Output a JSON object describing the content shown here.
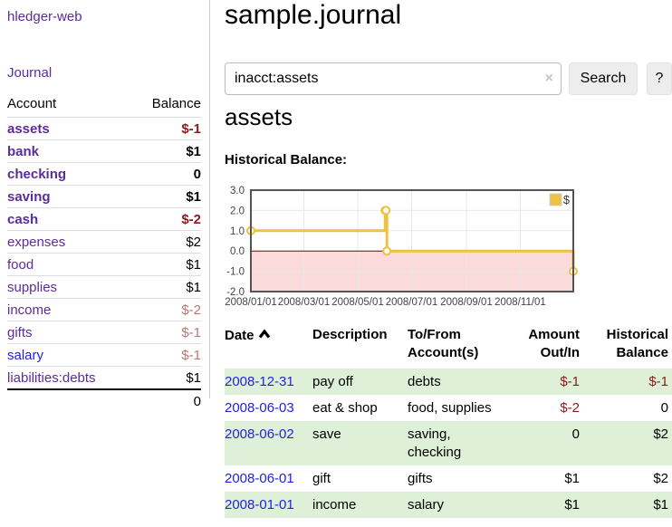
{
  "app": {
    "brand": "hledger-web",
    "nav_journal": "Journal"
  },
  "sidebar": {
    "header": {
      "account": "Account",
      "balance": "Balance"
    },
    "accounts": [
      {
        "name": "assets",
        "balance": "$-1"
      },
      {
        "name": "bank",
        "balance": "$1"
      },
      {
        "name": "checking",
        "balance": "0"
      },
      {
        "name": "saving",
        "balance": "$1"
      },
      {
        "name": "cash",
        "balance": "$-2"
      },
      {
        "name": "expenses",
        "balance": "$2"
      },
      {
        "name": "food",
        "balance": "$1"
      },
      {
        "name": "supplies",
        "balance": "$1"
      },
      {
        "name": "income",
        "balance": "$-2"
      },
      {
        "name": "gifts",
        "balance": "$-1"
      },
      {
        "name": "salary",
        "balance": "$-1"
      },
      {
        "name": "liabilities:debts",
        "balance": "$1"
      }
    ],
    "total": "0"
  },
  "main": {
    "title": "sample.journal",
    "search": {
      "value": "inacct:assets",
      "clear_icon": "×",
      "search_button": "Search",
      "help_button": "?"
    },
    "account_heading": "assets",
    "chart_heading": "Historical Balance:"
  },
  "chart_data": {
    "type": "line",
    "step": true,
    "title": "Historical Balance",
    "x_min": "2008-01-01",
    "x_max": "2008-12-31",
    "ylim": [
      -2,
      3
    ],
    "y_ticks": [
      3.0,
      2.0,
      1.0,
      0.0,
      -1.0,
      -2.0
    ],
    "y_tick_labels": [
      "3.0",
      "2.0",
      "1.0",
      "0.0",
      "-1.0",
      "-2.0"
    ],
    "x_ticks": [
      {
        "date": "2008-01-01",
        "label": "2008/01/01"
      },
      {
        "date": "2008-03-01",
        "label": "2008/03/01"
      },
      {
        "date": "2008-05-01",
        "label": "2008/05/01"
      },
      {
        "date": "2008-07-01",
        "label": "2008/07/01"
      },
      {
        "date": "2008-09-01",
        "label": "2008/09/01"
      },
      {
        "date": "2008-11-01",
        "label": "2008/11/01"
      }
    ],
    "series": [
      {
        "name": "$",
        "color": "#EDC240",
        "points": [
          {
            "date": "2008-01-01",
            "value": 1
          },
          {
            "date": "2008-06-01",
            "value": 2
          },
          {
            "date": "2008-06-02",
            "value": 2
          },
          {
            "date": "2008-06-03",
            "value": 0
          },
          {
            "date": "2008-12-31",
            "value": -1
          }
        ]
      }
    ],
    "legend": {
      "label": "$",
      "position": "top-right"
    },
    "grid": true,
    "colors": {
      "negative_fill": "#fadada",
      "zero_line": "#8b0000",
      "border": "#545454",
      "grid": "#e8e8e8"
    }
  },
  "register": {
    "columns": [
      "Date",
      "Description",
      "To/From Account(s)",
      "Amount Out/In",
      "Historical Balance"
    ],
    "rows": [
      {
        "date": "2008-12-31",
        "description": "pay off",
        "accounts": "debts",
        "amount": "$-1",
        "balance": "$-1"
      },
      {
        "date": "2008-06-03",
        "description": "eat & shop",
        "accounts": "food, supplies",
        "amount": "$-2",
        "balance": "0"
      },
      {
        "date": "2008-06-02",
        "description": "save",
        "accounts": "saving, checking",
        "amount": "0",
        "balance": "$2"
      },
      {
        "date": "2008-06-01",
        "description": "gift",
        "accounts": "gifts",
        "amount": "$1",
        "balance": "$2"
      },
      {
        "date": "2008-01-01",
        "description": "income",
        "accounts": "salary",
        "amount": "$1",
        "balance": "$1"
      }
    ]
  },
  "colors": {
    "link_purple": "#5b2c9d",
    "link_blue": "#2222e0",
    "negative_strong": "#8b1b1b",
    "negative_soft": "#bb7777",
    "row_green": "#dff0d8",
    "chart_line": "#EDC240"
  }
}
